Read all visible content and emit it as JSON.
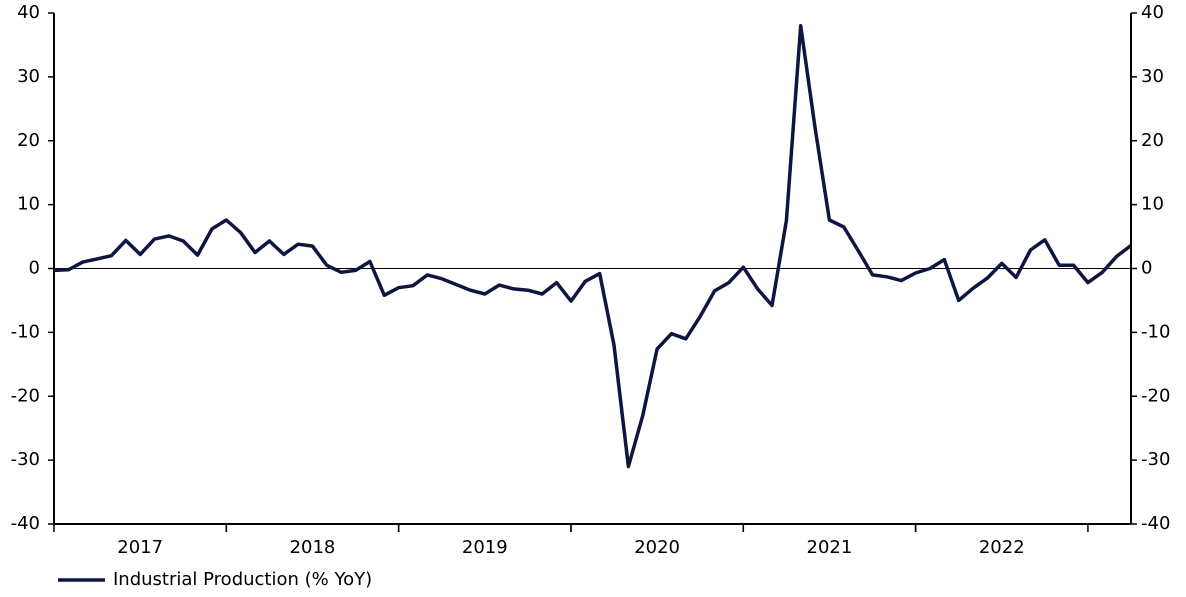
{
  "chart_data": {
    "type": "line",
    "categories": [
      "2017",
      null,
      null,
      null,
      null,
      null,
      null,
      null,
      null,
      null,
      null,
      null,
      "2018",
      null,
      null,
      null,
      null,
      null,
      null,
      null,
      null,
      null,
      null,
      null,
      "2019",
      null,
      null,
      null,
      null,
      null,
      null,
      null,
      null,
      null,
      null,
      null,
      "2020",
      null,
      null,
      null,
      null,
      null,
      null,
      null,
      null,
      null,
      null,
      null,
      "2021",
      null,
      null,
      null,
      null,
      null,
      null,
      null,
      null,
      null,
      null,
      null,
      "2022",
      null,
      null,
      null,
      null,
      null,
      null,
      null,
      null,
      null,
      null,
      null,
      null,
      null,
      null,
      null
    ],
    "series": [
      {
        "name": "Industrial Production (% YoY)",
        "color": "#0d1540",
        "values": [
          -0.3,
          -0.2,
          1.0,
          1.5,
          2.0,
          4.4,
          2.2,
          4.6,
          5.1,
          4.3,
          2.1,
          6.2,
          7.6,
          5.6,
          2.5,
          4.3,
          2.2,
          3.8,
          3.5,
          0.5,
          -0.6,
          -0.3,
          1.1,
          -4.2,
          -3.0,
          -2.7,
          -1.0,
          -1.6,
          -2.5,
          -3.4,
          -4.0,
          -2.6,
          -3.2,
          -3.4,
          -4.0,
          -2.2,
          -5.1,
          -2.0,
          -0.8,
          -12.0,
          -31.0,
          -23.0,
          -12.6,
          -10.2,
          -11.0,
          -7.5,
          -3.5,
          -2.2,
          0.2,
          -3.2,
          -5.8,
          7.5,
          38.0,
          22.0,
          7.6,
          6.5,
          2.8,
          -1.0,
          -1.3,
          -1.9,
          -0.7,
          0.0,
          1.4,
          -5.0,
          -3.1,
          -1.5,
          0.8,
          -1.4,
          2.9,
          4.5,
          0.5,
          0.5,
          -2.2,
          -0.6,
          1.9,
          3.6
        ]
      }
    ],
    "ylim": [
      -40,
      40
    ],
    "yticks": [
      -40,
      -30,
      -20,
      -10,
      0,
      10,
      20,
      30,
      40
    ],
    "y2lim": [
      -40,
      40
    ],
    "y2ticks": [
      -40,
      -30,
      -20,
      -10,
      0,
      10,
      20,
      30,
      40
    ],
    "legend": "bottom-left"
  }
}
